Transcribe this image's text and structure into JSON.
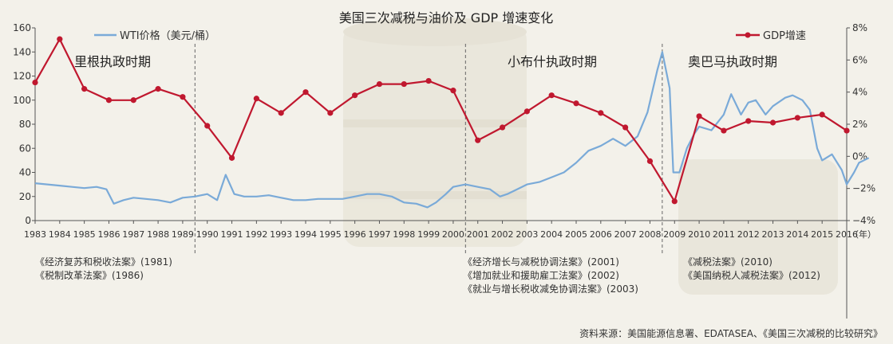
{
  "chart_data": {
    "type": "line",
    "title": "美国三次减税与油价及 GDP 增速变化",
    "x": [
      1983,
      1984,
      1985,
      1986,
      1987,
      1988,
      1989,
      1990,
      1991,
      1992,
      1993,
      1994,
      1995,
      1996,
      1997,
      1998,
      1999,
      2000,
      2001,
      2002,
      2003,
      2004,
      2005,
      2006,
      2007,
      2008,
      2009,
      2010,
      2011,
      2012,
      2013,
      2014,
      2015,
      2016
    ],
    "x_tick_labels": [
      "1983",
      "1984",
      "1985",
      "1986",
      "1987",
      "1988",
      "1989",
      "1990",
      "1991",
      "1992",
      "1993",
      "1994",
      "1995",
      "1996",
      "1997",
      "1998",
      "1999",
      "2000",
      "2001",
      "2002",
      "2003",
      "2004",
      "2005",
      "2006",
      "2007",
      "2008",
      "2009",
      "2010",
      "2011",
      "2012",
      "2013",
      "2014",
      "2015",
      "2016"
    ],
    "x_unit": "（年）",
    "y_left": {
      "ticks": [
        "0",
        "20",
        "40",
        "60",
        "80",
        "100",
        "120",
        "140",
        "160"
      ],
      "ylim": [
        0,
        160
      ]
    },
    "y_right": {
      "ticks": [
        "−4%",
        "−2%",
        "0%",
        "2%",
        "4%",
        "6%",
        "8%"
      ],
      "ylim": [
        -4,
        8
      ]
    },
    "series": [
      {
        "name": "WTI价格（美元/桶）",
        "axis": "left",
        "color": "#7aaad8",
        "x": [
          1983.0,
          1983.5,
          1984.0,
          1984.5,
          1985.0,
          1985.5,
          1985.9,
          1986.2,
          1986.6,
          1987.0,
          1987.5,
          1988.0,
          1988.5,
          1989.0,
          1989.5,
          1990.0,
          1990.4,
          1990.75,
          1991.1,
          1991.5,
          1992.0,
          1992.5,
          1993.0,
          1993.5,
          1994.0,
          1994.5,
          1995.0,
          1995.5,
          1996.0,
          1996.5,
          1997.0,
          1997.5,
          1998.0,
          1998.5,
          1998.95,
          1999.3,
          1999.7,
          2000.0,
          2000.5,
          2001.0,
          2001.5,
          2001.9,
          2002.2,
          2002.6,
          2003.0,
          2003.5,
          2004.0,
          2004.5,
          2005.0,
          2005.5,
          2006.0,
          2006.5,
          2007.0,
          2007.5,
          2007.9,
          2008.3,
          2008.5,
          2008.8,
          2008.95,
          2009.2,
          2009.5,
          2009.8,
          2010.0,
          2010.5,
          2011.0,
          2011.3,
          2011.7,
          2012.0,
          2012.3,
          2012.7,
          2013.0,
          2013.5,
          2013.8,
          2014.2,
          2014.5,
          2014.8,
          2015.0,
          2015.4,
          2015.8,
          2016.0,
          2016.3,
          2016.5,
          2016.9
        ],
        "values": [
          31,
          30,
          29,
          28,
          27,
          28,
          26,
          14,
          17,
          19,
          18,
          17,
          15,
          19,
          20,
          22,
          17,
          38,
          22,
          20,
          20,
          21,
          19,
          17,
          17,
          18,
          18,
          18,
          20,
          22,
          22,
          20,
          15,
          14,
          11,
          15,
          22,
          28,
          30,
          28,
          26,
          20,
          22,
          26,
          30,
          32,
          36,
          40,
          48,
          58,
          62,
          68,
          62,
          70,
          90,
          125,
          140,
          110,
          40,
          40,
          60,
          72,
          78,
          75,
          88,
          105,
          88,
          98,
          100,
          88,
          95,
          102,
          104,
          100,
          92,
          60,
          50,
          55,
          42,
          30,
          40,
          48,
          52
        ]
      },
      {
        "name": "GDP增速",
        "axis": "right",
        "color": "#c0182f",
        "x": [
          1983,
          1984,
          1985,
          1986,
          1987,
          1988,
          1989,
          1990,
          1991,
          1992,
          1993,
          1994,
          1995,
          1996,
          1997,
          1998,
          1999,
          2000,
          2001,
          2002,
          2003,
          2004,
          2005,
          2006,
          2007,
          2008,
          2009,
          2010,
          2011,
          2012,
          2013,
          2014,
          2015,
          2016
        ],
        "values": [
          4.6,
          7.3,
          4.2,
          3.5,
          3.5,
          4.2,
          3.7,
          1.9,
          -0.1,
          3.6,
          2.7,
          4.0,
          2.7,
          3.8,
          4.5,
          4.5,
          4.7,
          4.1,
          1.0,
          1.8,
          2.8,
          3.8,
          3.3,
          2.7,
          1.8,
          -0.3,
          -2.8,
          2.5,
          1.6,
          2.2,
          2.1,
          2.4,
          2.6,
          1.6
        ]
      }
    ],
    "grid": false,
    "legend": [
      "top-left",
      "top-right"
    ],
    "annotations": {
      "periods": [
        "里根执政时期",
        "小布什执政时期",
        "奥巴马执政时期"
      ],
      "period_boundaries": [
        1989.5,
        2000.5,
        2008.5
      ],
      "laws_reagan": [
        "《经济复苏和税收法案》(1981)",
        "《税制改革法案》(1986)"
      ],
      "laws_bush": [
        "《经济增长与减税协调法案》(2001)",
        "《增加就业和援助雇工法案》(2002)",
        "《就业与增长税收减免协调法案》(2003)"
      ],
      "laws_obama": [
        "《减税法案》(2010)",
        "《美国纳税人减税法案》(2012)"
      ]
    },
    "source": "资料来源：美国能源信息署、EDATASEA、《美国三次减税的比较研究》"
  }
}
